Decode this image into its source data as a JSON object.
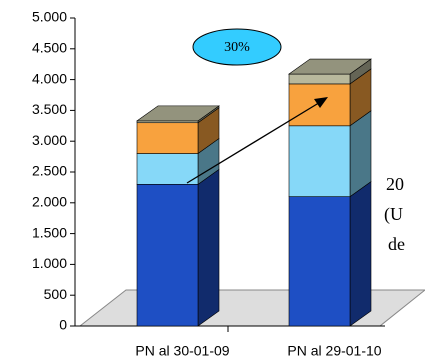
{
  "chart_data": {
    "type": "bar3d-stacked",
    "categories": [
      "PN al 30-01-09",
      "PN al 29-01-10"
    ],
    "series": [
      {
        "color": "#1e4fc4",
        "values": [
          2300,
          2100
        ]
      },
      {
        "color": "#86d8f8",
        "values": [
          500,
          1150
        ]
      },
      {
        "color": "#f8a23e",
        "values": [
          500,
          680
        ]
      },
      {
        "color": "#b8b89c",
        "values": [
          30,
          160
        ]
      }
    ],
    "ylim": [
      0,
      5000
    ],
    "yticks": [
      0,
      500,
      {
        "value": 1000,
        "label": "1.000"
      },
      {
        "value": 1500,
        "label": "1.500"
      },
      {
        "value": 2000,
        "label": "2.000"
      },
      {
        "value": 2500,
        "label": "2.500"
      },
      {
        "value": 3000,
        "label": "3.000"
      },
      {
        "value": 3500,
        "label": "3.500"
      },
      {
        "value": 4000,
        "label": "4.000"
      },
      {
        "value": 4500,
        "label": "4.500"
      },
      {
        "value": 5000,
        "label": "5.000"
      }
    ],
    "callout": "30%",
    "annotations": [
      "20",
      "(U",
      "de"
    ]
  }
}
